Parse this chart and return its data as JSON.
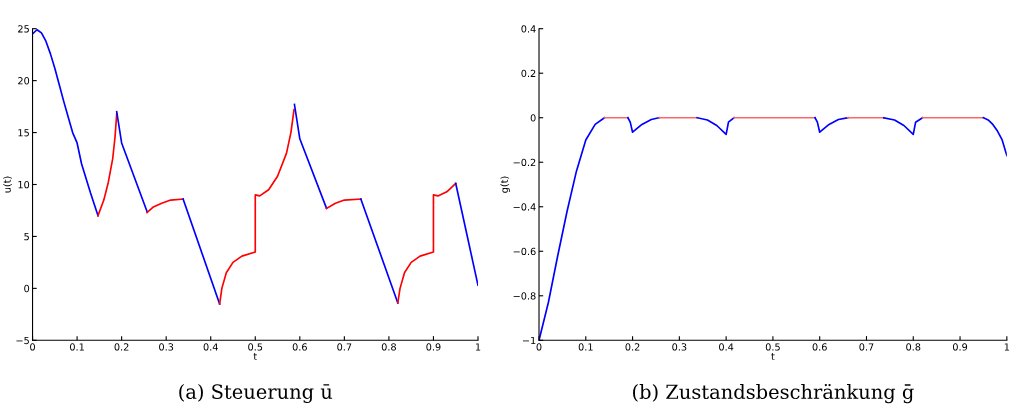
{
  "chart_data": [
    {
      "type": "line",
      "title": "(a) Steuerung ū",
      "xlabel": "t",
      "ylabel": "u(t)",
      "xlim": [
        0,
        1
      ],
      "ylim": [
        -5,
        25
      ],
      "xticks": [
        0,
        0.1,
        0.2,
        0.3,
        0.4,
        0.5,
        0.6,
        0.7,
        0.8,
        0.9,
        1
      ],
      "yticks": [
        -5,
        0,
        5,
        10,
        15,
        20,
        25
      ],
      "grid": false,
      "series": [
        {
          "color": "#0000ff",
          "x": [
            0,
            0.01,
            0.02,
            0.03,
            0.04,
            0.05,
            0.06,
            0.07,
            0.08,
            0.09,
            0.1,
            0.11,
            0.12,
            0.13,
            0.147
          ],
          "values": [
            24.5,
            24.9,
            24.6,
            23.8,
            22.6,
            21.2,
            19.6,
            18,
            16.5,
            15,
            14,
            12,
            10.6,
            9.2,
            7
          ]
        },
        {
          "color": "#ff0000",
          "x": [
            0.147,
            0.16,
            0.17,
            0.18,
            0.185,
            0.189
          ],
          "values": [
            7,
            8.5,
            10.2,
            12.5,
            14.5,
            16.8
          ]
        },
        {
          "color": "#0000ff",
          "x": [
            0.189,
            0.2,
            0.257
          ],
          "values": [
            17,
            14,
            7.4
          ]
        },
        {
          "color": "#ff0000",
          "x": [
            0.257,
            0.27,
            0.29,
            0.31,
            0.338
          ],
          "values": [
            7.3,
            7.8,
            8.2,
            8.5,
            8.6
          ]
        },
        {
          "color": "#0000ff",
          "x": [
            0.338,
            0.42
          ],
          "values": [
            8.6,
            -1.5
          ]
        },
        {
          "color": "#ff0000",
          "x": [
            0.42,
            0.425,
            0.435,
            0.45,
            0.47,
            0.5,
            0.5,
            0.51,
            0.53,
            0.55,
            0.57,
            0.58,
            0.587
          ],
          "values": [
            -1.5,
            0,
            1.5,
            2.5,
            3.1,
            3.5,
            9,
            8.9,
            9.5,
            10.8,
            13,
            15,
            17.2
          ]
        },
        {
          "color": "#0000ff",
          "x": [
            0.588,
            0.6,
            0.66
          ],
          "values": [
            17.7,
            14.4,
            7.7
          ]
        },
        {
          "color": "#ff0000",
          "x": [
            0.66,
            0.68,
            0.7,
            0.737
          ],
          "values": [
            7.7,
            8.2,
            8.5,
            8.6
          ]
        },
        {
          "color": "#0000ff",
          "x": [
            0.737,
            0.82
          ],
          "values": [
            8.6,
            -1.4
          ]
        },
        {
          "color": "#ff0000",
          "x": [
            0.82,
            0.825,
            0.835,
            0.85,
            0.87,
            0.9,
            0.9,
            0.91,
            0.93,
            0.95
          ],
          "values": [
            -1.4,
            0,
            1.5,
            2.5,
            3.1,
            3.5,
            9,
            8.9,
            9.3,
            10.1
          ]
        },
        {
          "color": "#0000ff",
          "x": [
            0.95,
            1
          ],
          "values": [
            10.1,
            0.3
          ]
        }
      ]
    },
    {
      "type": "line",
      "title": "(b) Zustandsbeschränkung ḡ",
      "xlabel": "t",
      "ylabel": "g(t)",
      "xlim": [
        0,
        1
      ],
      "ylim": [
        -1,
        0.4
      ],
      "xticks": [
        0,
        0.1,
        0.2,
        0.3,
        0.4,
        0.5,
        0.6,
        0.7,
        0.8,
        0.9,
        1
      ],
      "yticks": [
        -1,
        -0.8,
        -0.6,
        -0.4,
        -0.2,
        0,
        0.2,
        0.4
      ],
      "grid": false,
      "series": [
        {
          "color": "#0000ff",
          "x": [
            0,
            0.02,
            0.04,
            0.06,
            0.08,
            0.1,
            0.12,
            0.14
          ],
          "values": [
            -1,
            -0.83,
            -0.62,
            -0.42,
            -0.24,
            -0.1,
            -0.03,
            0
          ]
        },
        {
          "color": "#ff6666",
          "x": [
            0.14,
            0.19
          ],
          "values": [
            0,
            0
          ]
        },
        {
          "color": "#0000ff",
          "x": [
            0.19,
            0.195,
            0.2,
            0.22,
            0.24,
            0.257
          ],
          "values": [
            0,
            -0.02,
            -0.065,
            -0.03,
            -0.008,
            0
          ]
        },
        {
          "color": "#ff6666",
          "x": [
            0.257,
            0.338
          ],
          "values": [
            0,
            0
          ]
        },
        {
          "color": "#0000ff",
          "x": [
            0.338,
            0.36,
            0.38,
            0.4,
            0.405,
            0.417
          ],
          "values": [
            0,
            -0.01,
            -0.035,
            -0.075,
            -0.02,
            0
          ]
        },
        {
          "color": "#ff6666",
          "x": [
            0.417,
            0.59
          ],
          "values": [
            0,
            0
          ]
        },
        {
          "color": "#0000ff",
          "x": [
            0.59,
            0.595,
            0.6,
            0.62,
            0.64,
            0.66
          ],
          "values": [
            0,
            -0.02,
            -0.065,
            -0.03,
            -0.008,
            0
          ]
        },
        {
          "color": "#ff6666",
          "x": [
            0.66,
            0.737
          ],
          "values": [
            0,
            0
          ]
        },
        {
          "color": "#0000ff",
          "x": [
            0.737,
            0.76,
            0.78,
            0.8,
            0.805,
            0.82
          ],
          "values": [
            0,
            -0.01,
            -0.035,
            -0.075,
            -0.02,
            0
          ]
        },
        {
          "color": "#ff6666",
          "x": [
            0.82,
            0.95
          ],
          "values": [
            0,
            0
          ]
        },
        {
          "color": "#0000ff",
          "x": [
            0.95,
            0.96,
            0.97,
            0.98,
            0.99,
            1
          ],
          "values": [
            0,
            -0.01,
            -0.03,
            -0.06,
            -0.1,
            -0.17
          ]
        }
      ]
    }
  ]
}
